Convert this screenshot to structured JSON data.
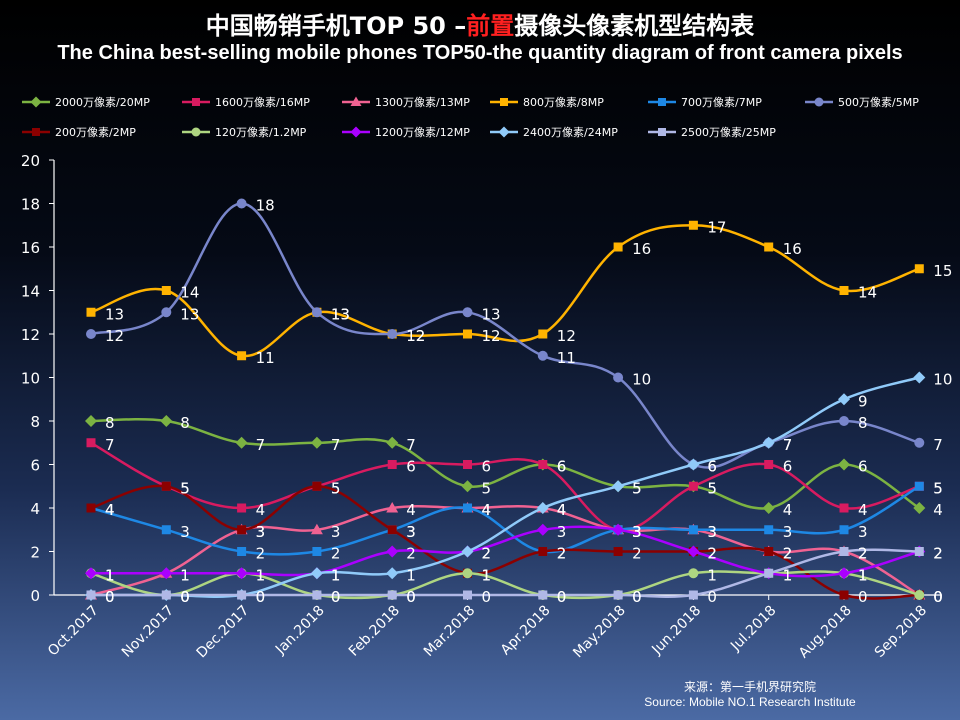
{
  "header": {
    "title_part1": "中国畅销手机TOP 50 –",
    "title_red": "前置",
    "title_part2": "摄像头像素机型结构表",
    "subtitle": "The China best-selling mobile phones TOP50-the quantity diagram of front camera pixels"
  },
  "source": {
    "line1": "来源：第一手机界研究院",
    "line2": "Source: Mobile NO.1 Research Institute"
  },
  "chart_data": {
    "type": "line",
    "title": "中国畅销手机TOP 50 –前置摄像头像素机型结构表",
    "subtitle": "The China best-selling mobile phones TOP50-the quantity diagram of front camera pixels",
    "categories": [
      "Oct.2017",
      "Nov.2017",
      "Dec.2017",
      "Jan.2018",
      "Feb.2018",
      "Mar.2018",
      "Apr.2018",
      "May.2018",
      "Jun.2018",
      "Jul.2018",
      "Aug.2018",
      "Sep.2018"
    ],
    "ylim": [
      0,
      20
    ],
    "yticks": [
      0,
      2,
      4,
      6,
      8,
      10,
      12,
      14,
      16,
      18,
      20
    ],
    "grid": false,
    "legend_position": "top",
    "series": [
      {
        "name": "2000万像素/20MP",
        "color": "#7cb342",
        "marker": "diamond",
        "labels": true,
        "values": [
          8,
          8,
          7,
          7,
          7,
          5,
          6,
          5,
          5,
          4,
          6,
          4
        ]
      },
      {
        "name": "1600万像素/16MP",
        "color": "#d81b60",
        "marker": "square",
        "labels": true,
        "values": [
          7,
          5,
          4,
          5,
          6,
          6,
          6,
          3,
          5,
          6,
          4,
          5
        ]
      },
      {
        "name": "1300万像素/13MP",
        "color": "#f06292",
        "marker": "triangle",
        "labels": true,
        "values": [
          0,
          1,
          3,
          3,
          4,
          4,
          4,
          3,
          3,
          2,
          2,
          0
        ]
      },
      {
        "name": "800万像素/8MP",
        "color": "#ffb300",
        "marker": "square",
        "labels": true,
        "values": [
          13,
          14,
          11,
          13,
          12,
          12,
          12,
          16,
          17,
          16,
          14,
          15
        ]
      },
      {
        "name": "700万像素/7MP",
        "color": "#1e88e5",
        "marker": "square",
        "labels": true,
        "values": [
          4,
          3,
          2,
          2,
          3,
          4,
          2,
          3,
          3,
          3,
          3,
          5
        ]
      },
      {
        "name": "500万像素/5MP",
        "color": "#7986cb",
        "marker": "circle",
        "labels": true,
        "values": [
          12,
          13,
          18,
          13,
          12,
          13,
          11,
          10,
          6,
          7,
          8,
          7
        ]
      },
      {
        "name": "200万像素/2MP",
        "color": "#8b0000",
        "marker": "square",
        "labels": true,
        "values": [
          4,
          5,
          3,
          5,
          3,
          1,
          2,
          2,
          2,
          2,
          0,
          0
        ]
      },
      {
        "name": "120万像素/1.2MP",
        "color": "#aed581",
        "marker": "circle",
        "labels": true,
        "values": [
          1,
          0,
          1,
          0,
          0,
          1,
          0,
          0,
          1,
          1,
          1,
          0
        ]
      },
      {
        "name": "1200万像素/12MP",
        "color": "#aa00ff",
        "marker": "diamond",
        "labels": true,
        "values": [
          1,
          1,
          1,
          1,
          2,
          2,
          3,
          3,
          2,
          1,
          1,
          2
        ]
      },
      {
        "name": "2400万像素/24MP",
        "color": "#90caf9",
        "marker": "diamond",
        "labels": true,
        "values": [
          0,
          0,
          0,
          1,
          1,
          2,
          4,
          5,
          6,
          7,
          9,
          10
        ]
      },
      {
        "name": "2500万像素/25MP",
        "color": "#b0b8e6",
        "marker": "square",
        "labels": true,
        "values": [
          0,
          0,
          0,
          0,
          0,
          0,
          0,
          0,
          0,
          1,
          2,
          2
        ]
      }
    ]
  }
}
